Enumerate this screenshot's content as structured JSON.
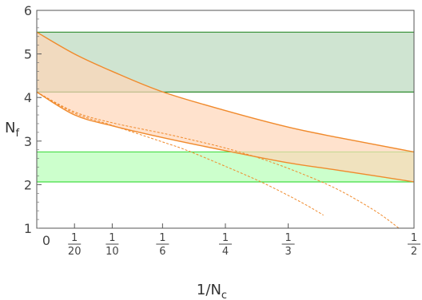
{
  "chart_data": {
    "type": "line",
    "title": "",
    "xlabel": "1/N",
    "xlabel_sub": "c",
    "ylabel": "N",
    "ylabel_sub": "f",
    "xlim": [
      0,
      0.5
    ],
    "ylim": [
      1,
      6
    ],
    "y_ticks": [
      "1",
      "2",
      "3",
      "4",
      "5",
      "6"
    ],
    "x_ticks": [
      {
        "value": 0,
        "label": "0"
      },
      {
        "value": 0.05,
        "num": "1",
        "den": "20"
      },
      {
        "value": 0.1,
        "num": "1",
        "den": "10"
      },
      {
        "value": 0.1667,
        "num": "1",
        "den": "6"
      },
      {
        "value": 0.25,
        "num": "1",
        "den": "4"
      },
      {
        "value": 0.3333,
        "num": "1",
        "den": "3"
      },
      {
        "value": 0.5,
        "num": "1",
        "den": "2"
      }
    ],
    "grid": false,
    "colors": {
      "green_band": "#2e8b2e",
      "green_band_fill": "#cfe4d1",
      "light_green_band": "#44dd44",
      "light_green_fill": "#ccffcc",
      "orange": "#f08a2c",
      "orange_fill": "#ffd6b8"
    },
    "bands": [
      {
        "id": "upper-green-band",
        "y_low": 4.125,
        "y_high": 5.5
      },
      {
        "id": "lower-green-band",
        "y_low": 2.0625,
        "y_high": 2.75
      }
    ],
    "series": [
      {
        "id": "upper-bound",
        "x": [
          0,
          0.05,
          0.1,
          0.1667,
          0.25,
          0.3333,
          0.4,
          0.5
        ],
        "y": [
          5.5,
          5.0,
          4.6,
          4.13,
          3.7,
          3.32,
          3.08,
          2.75
        ]
      },
      {
        "id": "lower-bound",
        "x": [
          0,
          0.05,
          0.1,
          0.1667,
          0.25,
          0.3333,
          0.4,
          0.5
        ],
        "y": [
          4.125,
          3.6,
          3.35,
          3.08,
          2.78,
          2.5,
          2.33,
          2.0625
        ]
      },
      {
        "id": "dashed-curve-1",
        "dashed": true,
        "x": [
          0,
          0.05,
          0.1,
          0.1667,
          0.2,
          0.25,
          0.3,
          0.35,
          0.4,
          0.45,
          0.48
        ],
        "y": [
          4.125,
          3.67,
          3.42,
          3.18,
          3.05,
          2.84,
          2.58,
          2.26,
          1.88,
          1.38,
          1.0
        ]
      },
      {
        "id": "dashed-curve-2",
        "dashed": true,
        "x": [
          0,
          0.05,
          0.1,
          0.1667,
          0.2,
          0.25,
          0.3,
          0.35,
          0.38
        ],
        "y": [
          4.125,
          3.64,
          3.36,
          2.98,
          2.78,
          2.42,
          2.04,
          1.6,
          1.3
        ]
      }
    ]
  }
}
